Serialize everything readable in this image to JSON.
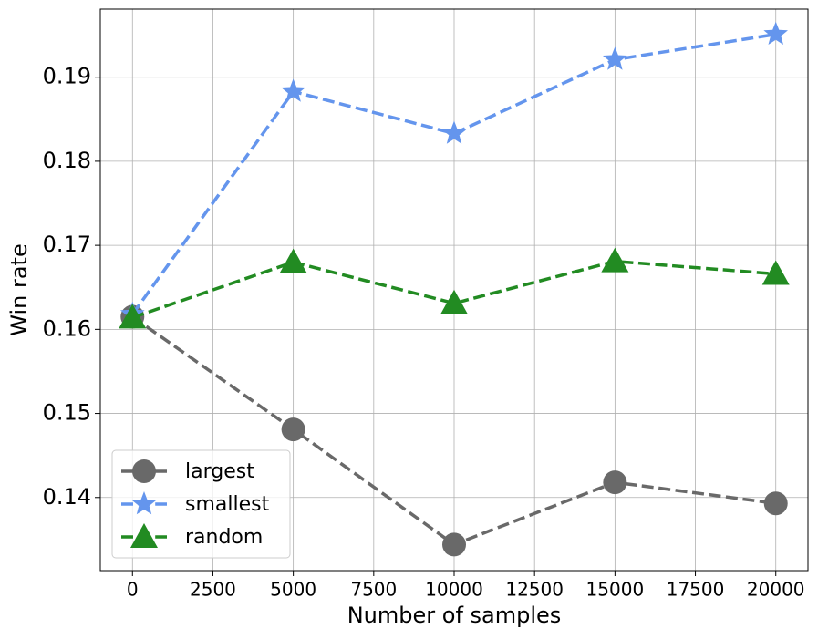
{
  "chart_data": {
    "type": "line",
    "x_label": "Number of samples",
    "y_label": "Win rate",
    "x": [
      0,
      5000,
      10000,
      15000,
      20000
    ],
    "series": [
      {
        "name": "largest",
        "color": "#696969",
        "marker": "circle",
        "values": [
          0.1615,
          0.1481,
          0.1344,
          0.1418,
          0.1393
        ]
      },
      {
        "name": "smallest",
        "color": "#6495ed",
        "marker": "star",
        "values": [
          0.1618,
          0.1883,
          0.1833,
          0.1921,
          0.1951
        ]
      },
      {
        "name": "random",
        "color": "#228b22",
        "marker": "triangle",
        "values": [
          0.1614,
          0.168,
          0.1631,
          0.1681,
          0.1666
        ]
      }
    ],
    "xlim": [
      -1000,
      21000
    ],
    "ylim": [
      0.1313,
      0.1981
    ],
    "xticks": [
      0,
      2500,
      5000,
      7500,
      10000,
      12500,
      15000,
      17500,
      20000
    ],
    "yticks": [
      0.14,
      0.15,
      0.16,
      0.17,
      0.18,
      0.19
    ],
    "grid": true,
    "legend_position": "lower left"
  }
}
